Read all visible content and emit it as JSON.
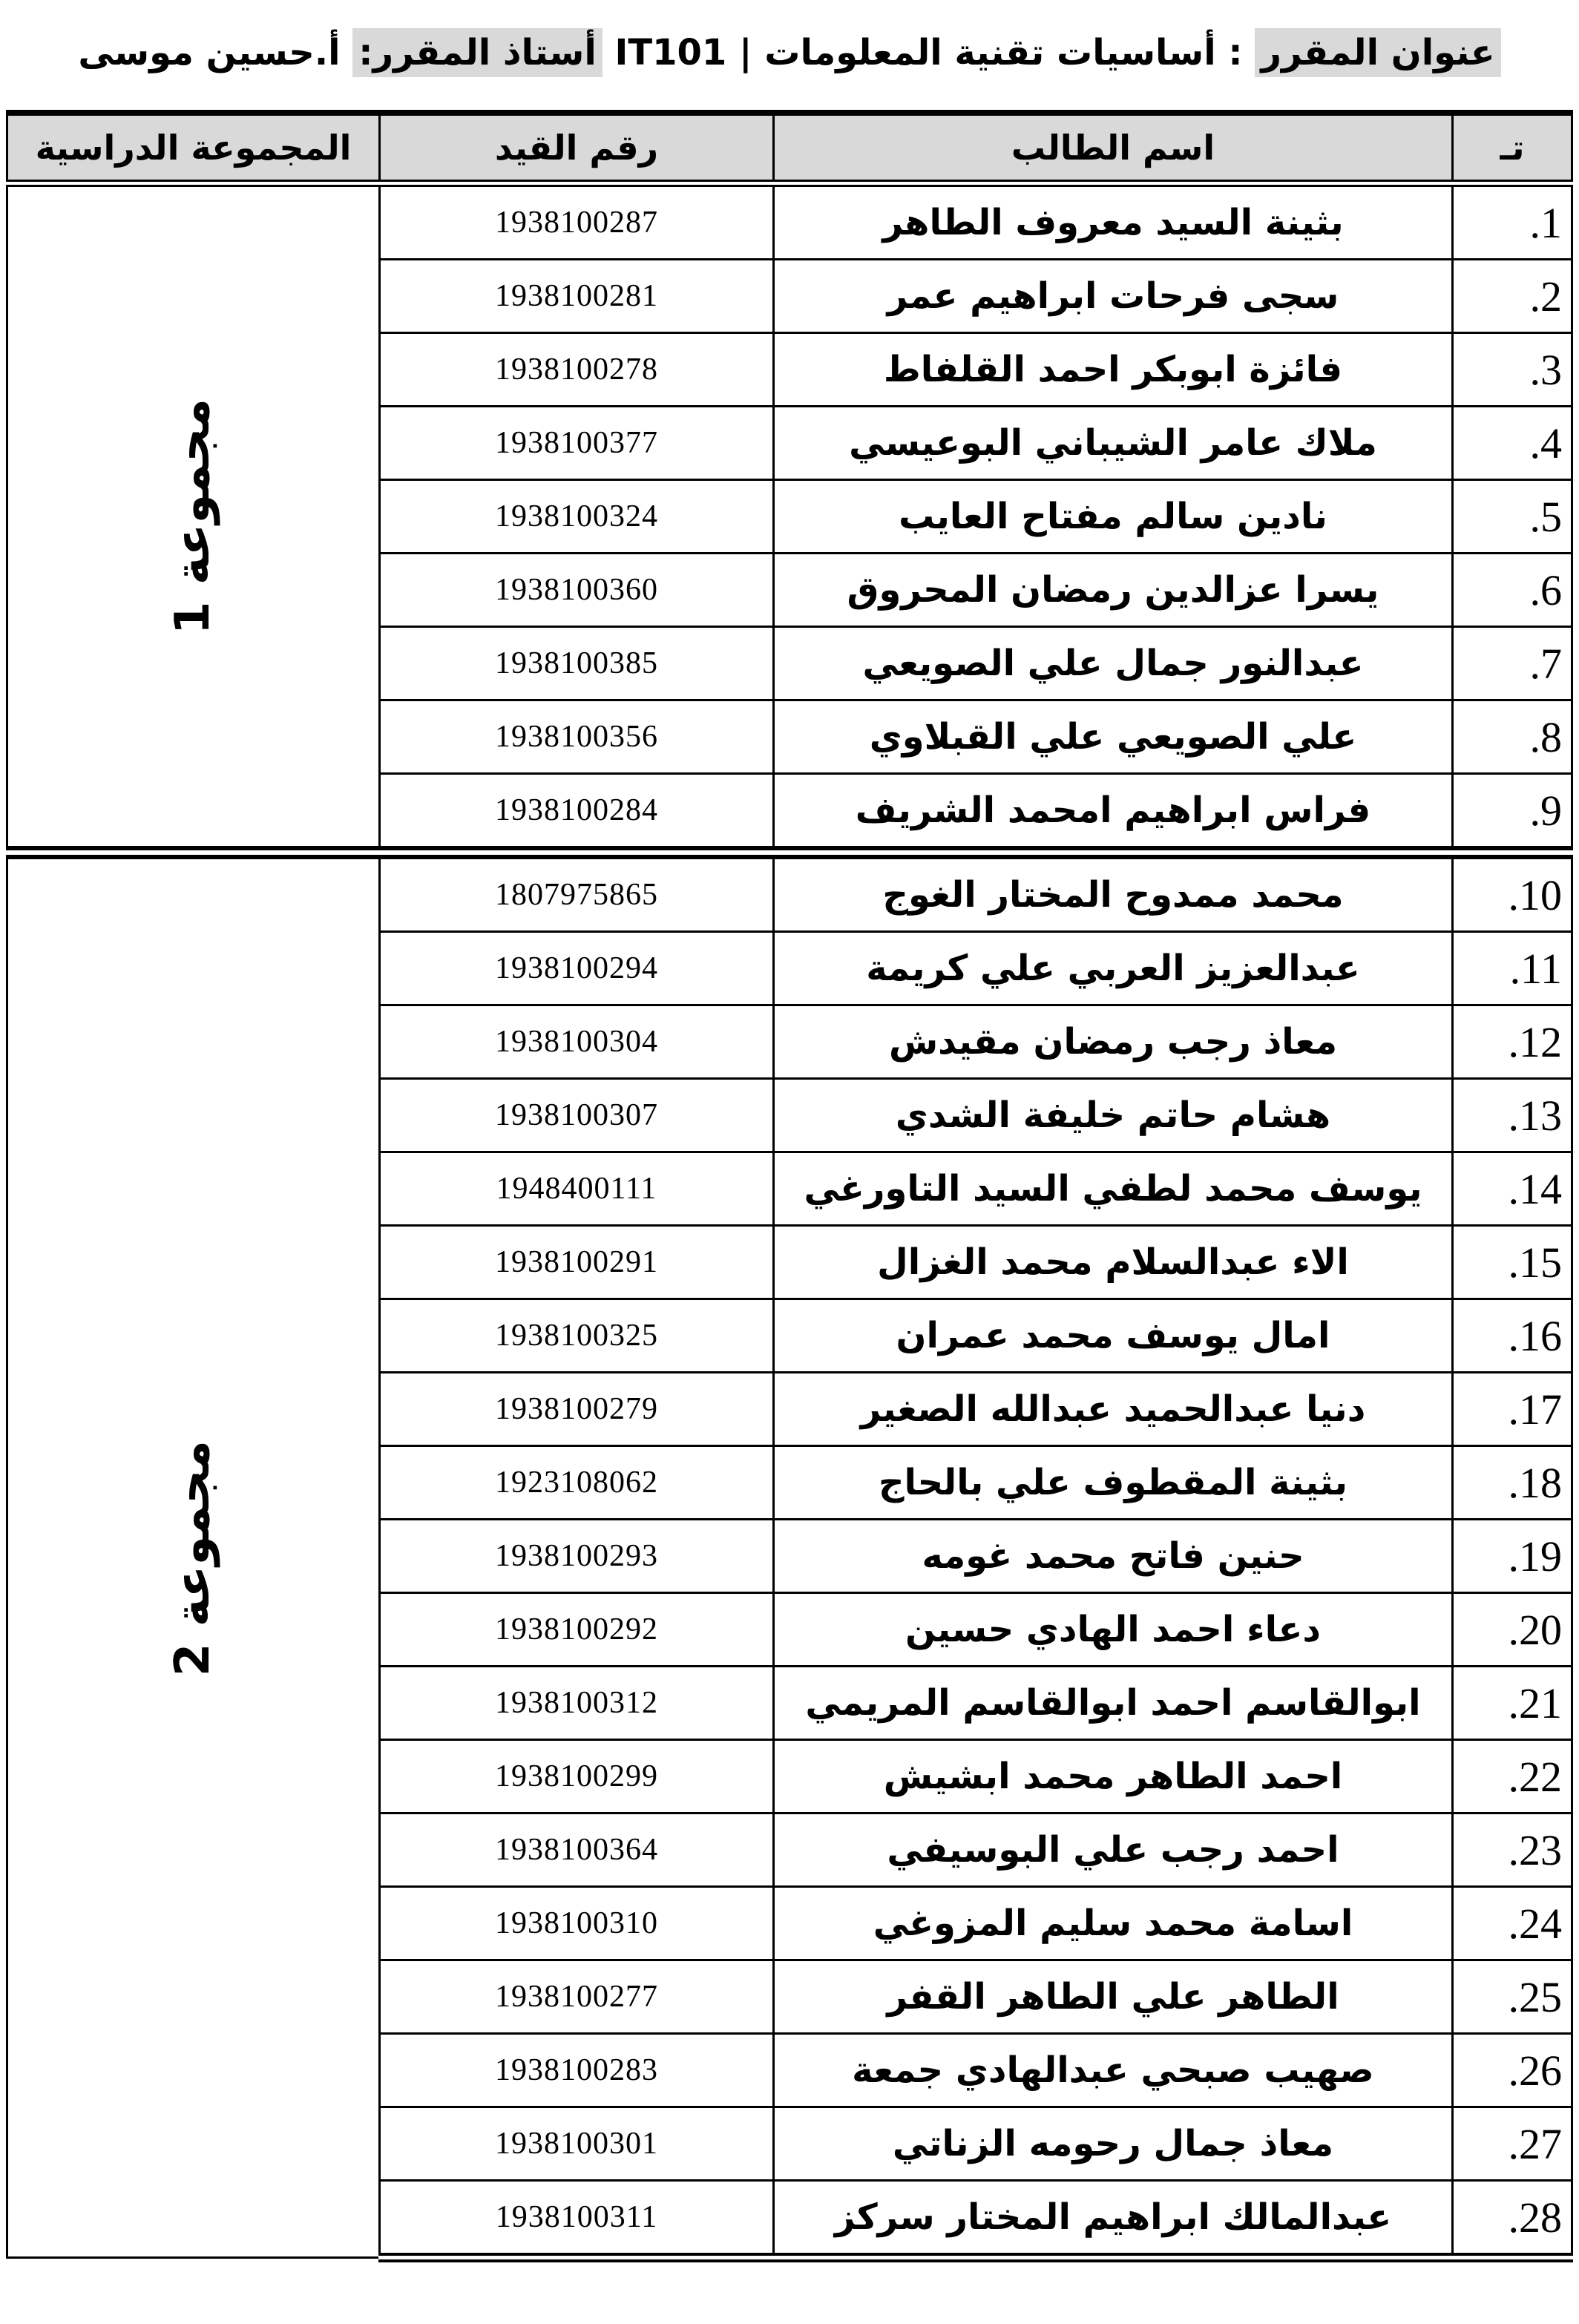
{
  "colors": {
    "header_bg": "#d9d9d9",
    "title_highlight": "#d9d9d9",
    "border": "#000000",
    "text": "#000000",
    "page_bg": "#ffffff"
  },
  "title": {
    "segments": [
      {
        "text": "عنوان المقرر",
        "highlight": true
      },
      {
        "text": " : أساسيات تقنية المعلومات | IT101 ",
        "highlight": false
      },
      {
        "text": "أستاذ المقرر:",
        "highlight": true
      },
      {
        "text": " أ.حسين موسى",
        "highlight": false
      }
    ]
  },
  "table": {
    "headers": {
      "no": "تـ",
      "name": "اسم الطالب",
      "reg": "رقم القيد",
      "group": "المجموعة الدراسية"
    },
    "groups": [
      {
        "label": "مجموعة 1",
        "rows": 9
      },
      {
        "label": "مجموعة 2",
        "rows": 19
      }
    ],
    "rows": [
      {
        "no": "1.",
        "name": "بثينة السيد معروف الطاهر",
        "reg": "1938100287"
      },
      {
        "no": "2.",
        "name": "سجى فرحات ابراهيم عمر",
        "reg": "1938100281"
      },
      {
        "no": "3.",
        "name": "فائزة ابوبكر احمد القلفاط",
        "reg": "1938100278"
      },
      {
        "no": "4.",
        "name": "ملاك عامر الشيباني البوعيسي",
        "reg": "1938100377"
      },
      {
        "no": "5.",
        "name": "نادين سالم مفتاح العايب",
        "reg": "1938100324"
      },
      {
        "no": "6.",
        "name": "يسرا عزالدين رمضان المحروق",
        "reg": "1938100360"
      },
      {
        "no": "7.",
        "name": "عبدالنور جمال علي الصويعي",
        "reg": "1938100385"
      },
      {
        "no": "8.",
        "name": "علي الصويعي علي القبلاوي",
        "reg": "1938100356"
      },
      {
        "no": "9.",
        "name": "فراس ابراهيم امحمد الشريف",
        "reg": "1938100284"
      },
      {
        "no": "10.",
        "name": "محمد ممدوح المختار الغوج",
        "reg": "1807975865"
      },
      {
        "no": "11.",
        "name": "عبدالعزيز العربي علي كريمة",
        "reg": "1938100294"
      },
      {
        "no": "12.",
        "name": "معاذ رجب رمضان مقيدش",
        "reg": "1938100304"
      },
      {
        "no": "13.",
        "name": "هشام حاتم خليفة الشدي",
        "reg": "1938100307"
      },
      {
        "no": "14.",
        "name": "يوسف محمد لطفي السيد التاورغي",
        "reg": "1948400111"
      },
      {
        "no": "15.",
        "name": "الاء عبدالسلام محمد الغزال",
        "reg": "1938100291"
      },
      {
        "no": "16.",
        "name": "امال يوسف محمد عمران",
        "reg": "1938100325"
      },
      {
        "no": "17.",
        "name": "دنيا عبدالحميد عبدالله الصغير",
        "reg": "1938100279"
      },
      {
        "no": "18.",
        "name": "بثينة المقطوف علي بالحاج",
        "reg": "1923108062"
      },
      {
        "no": "19.",
        "name": "حنين فاتح محمد غومه",
        "reg": "1938100293"
      },
      {
        "no": "20.",
        "name": "دعاء احمد الهادي حسين",
        "reg": "1938100292"
      },
      {
        "no": "21.",
        "name": "ابوالقاسم احمد ابوالقاسم المريمي",
        "reg": "1938100312"
      },
      {
        "no": "22.",
        "name": "احمد الطاهر محمد ابشيش",
        "reg": "1938100299"
      },
      {
        "no": "23.",
        "name": "احمد رجب علي البوسيفي",
        "reg": "1938100364"
      },
      {
        "no": "24.",
        "name": "اسامة محمد سليم المزوغي",
        "reg": "1938100310"
      },
      {
        "no": "25.",
        "name": "الطاهر علي الطاهر القفر",
        "reg": "1938100277"
      },
      {
        "no": "26.",
        "name": "صهيب صبحي عبدالهادي جمعة",
        "reg": "1938100283"
      },
      {
        "no": "27.",
        "name": "معاذ جمال رحومه الزناتي",
        "reg": "1938100301"
      },
      {
        "no": "28.",
        "name": "عبدالمالك ابراهيم المختار سركز",
        "reg": "1938100311"
      }
    ]
  }
}
